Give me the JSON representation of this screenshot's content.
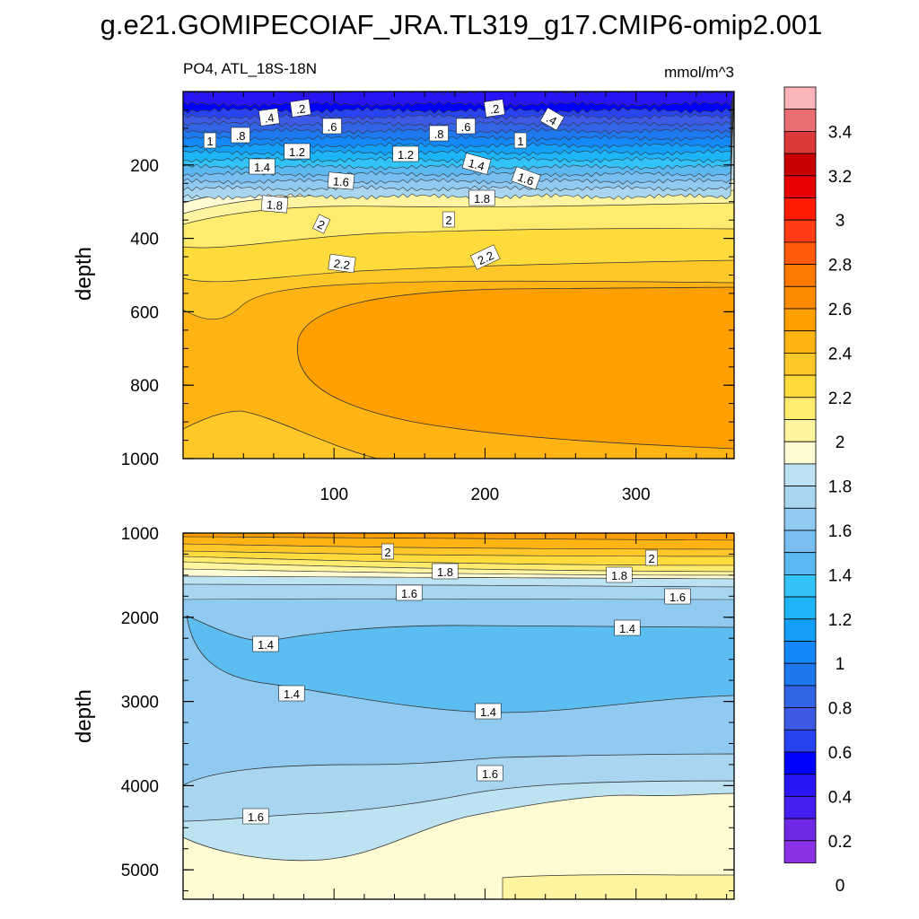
{
  "figure": {
    "title": "g.e21.GOMIPECOIAF_JRA.TL319_g17.CMIP6-omip2.001",
    "left_subtitle": "PO4, ATL_18S-18N",
    "units": "mmol/m^3"
  },
  "chart_data": [
    {
      "type": "heatmap",
      "panel": "upper",
      "title": "PO4, ATL_18S-18N",
      "units": "mmol/m^3",
      "ylabel": "depth",
      "xlabel": "",
      "ylim": [
        1000,
        0
      ],
      "xlim": [
        0,
        365
      ],
      "x_ticks": [
        100,
        200,
        300
      ],
      "y_ticks": [
        200,
        400,
        600,
        800,
        1000
      ],
      "contour_labels": [
        ".2",
        ".4",
        ".6",
        ".8",
        "1",
        "1.2",
        "1.4",
        "1.6",
        "1.8",
        "2",
        "2.2"
      ],
      "depth_profile": [
        {
          "depth": 50,
          "value": 0.1
        },
        {
          "depth": 100,
          "value": 0.7
        },
        {
          "depth": 150,
          "value": 1.1
        },
        {
          "depth": 200,
          "value": 1.4
        },
        {
          "depth": 270,
          "value": 1.75
        },
        {
          "depth": 350,
          "value": 1.95
        },
        {
          "depth": 450,
          "value": 2.15
        },
        {
          "depth": 650,
          "value": 2.45
        },
        {
          "depth": 850,
          "value": 2.35
        },
        {
          "depth": 1000,
          "value": 2.2
        }
      ]
    },
    {
      "type": "heatmap",
      "panel": "lower",
      "ylabel": "depth",
      "ylim": [
        5350,
        1000
      ],
      "xlim": [
        0,
        365
      ],
      "y_ticks": [
        1000,
        2000,
        3000,
        4000,
        5000
      ],
      "contour_labels": [
        "2",
        "1.8",
        "1.6",
        "1.4",
        "1.4",
        "1.4",
        "1.6",
        "1.6",
        "2",
        "1.8",
        "1.6",
        "1.4"
      ],
      "depth_profile": [
        {
          "depth": 1000,
          "value": 2.1
        },
        {
          "depth": 1300,
          "value": 1.85
        },
        {
          "depth": 1700,
          "value": 1.6
        },
        {
          "depth": 2500,
          "value": 1.35
        },
        {
          "depth": 3200,
          "value": 1.45
        },
        {
          "depth": 4000,
          "value": 1.6
        },
        {
          "depth": 5000,
          "value": 1.75
        }
      ]
    }
  ],
  "colorbar": {
    "labels": [
      "3.4",
      "3.2",
      "3",
      "2.8",
      "2.6",
      "2.4",
      "2.2",
      "2",
      "1.8",
      "1.6",
      "1.4",
      "1.2",
      "1",
      "0.8",
      "0.6",
      "0.4",
      "0.2",
      "0"
    ],
    "colors": [
      "#fbb4b9",
      "#ea6f72",
      "#dc3a3a",
      "#c80000",
      "#e80000",
      "#ff1a00",
      "#ff3c14",
      "#ff5a0a",
      "#ff7800",
      "#ff8c00",
      "#ffa000",
      "#ffb414",
      "#ffc828",
      "#ffdc3c",
      "#ffec6e",
      "#fff5a0",
      "#fffbd2",
      "#bde2f2",
      "#a8d6f0",
      "#90caf0",
      "#78bef0",
      "#5cb8f0",
      "#32c4f8",
      "#1eb4f8",
      "#14a0f8",
      "#1488f8",
      "#1e78f0",
      "#3264e6",
      "#3c5ae6",
      "#2844f0",
      "#0000ff",
      "#2814f5",
      "#461ef0",
      "#6e28e6",
      "#8c32e6"
    ]
  }
}
